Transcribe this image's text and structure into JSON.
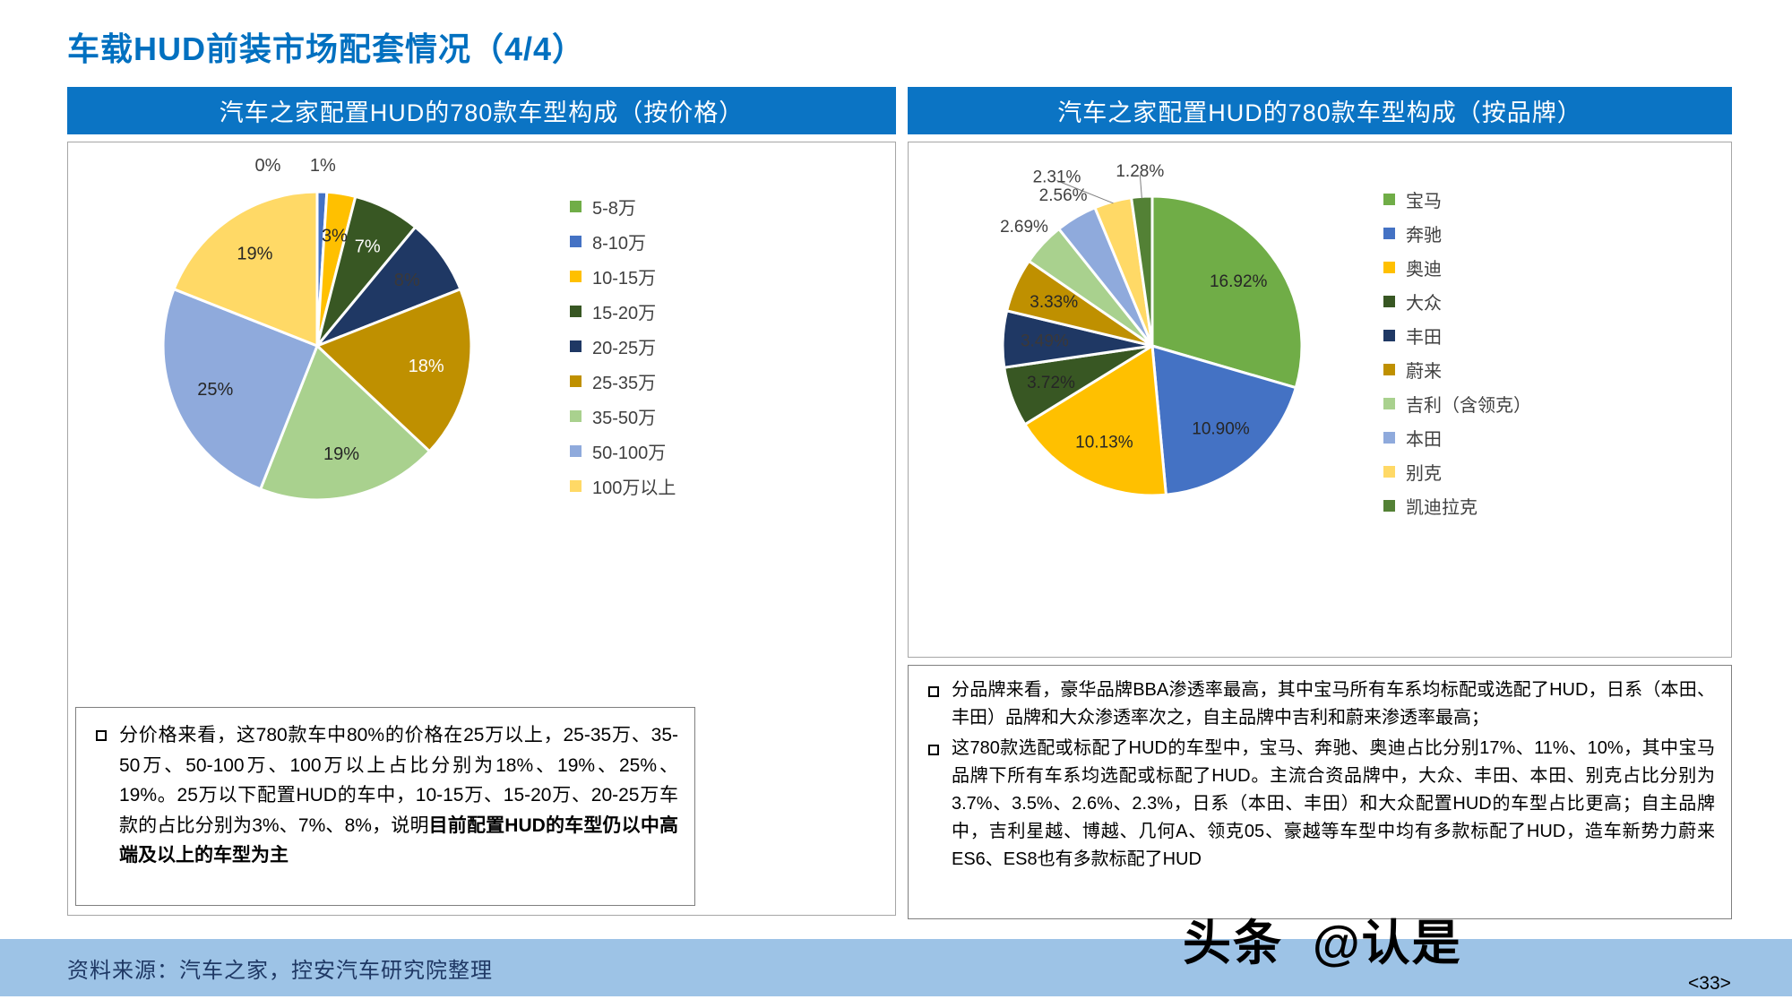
{
  "page": {
    "title": "车载HUD前装市场配套情况（4/4）",
    "footer": {
      "source": "资料来源：汽车之家，控安汽车研究院整理",
      "watermark_1": "头条",
      "watermark_2": "@认是",
      "page_number": "<33>"
    }
  },
  "colors": {
    "accent_blue": "#0070C0",
    "header_bg": "#0B74C4",
    "footer_bg": "#9DC3E6",
    "footer_text": "#1F3864"
  },
  "panels": [
    {
      "header": "汽车之家配置HUD的780款车型构成（按价格）",
      "notes": [
        {
          "parts": [
            {
              "text": "分价格来看，这780款车中80%的价格在25万以上，25-35万、35-50万、50-100万、100万以上占比分别为18%、19%、25%、19%。25万以下配置HUD的车中，10-15万、15-20万、20-25万车款的占比分别为3%、7%、8%，说明",
              "bold": false
            },
            {
              "text": "目前配置HUD的车型仍以中高端及以上的车型为主",
              "bold": true
            }
          ]
        }
      ]
    },
    {
      "header": "汽车之家配置HUD的780款车型构成（按品牌）",
      "notes": [
        {
          "parts": [
            {
              "text": "分品牌来看，豪华品牌BBA渗透率最高，其中宝马所有车系均标配或选配了HUD，日系（本田、丰田）品牌和大众渗透率次之，自主品牌中吉利和蔚来渗透率最高；",
              "bold": false
            }
          ]
        },
        {
          "parts": [
            {
              "text": "这780款选配或标配了HUD的车型中，宝马、奔驰、奥迪占比分别17%、11%、10%，其中宝马品牌下所有车系均选配或标配了HUD。主流合资品牌中，大众、丰田、本田、别克占比分别为3.7%、3.5%、2.6%、2.3%，日系（本田、丰田）和大众配置HUD的车型占比更高；自主品牌中，吉利星越、博越、几何A、领克05、豪越等车型中均有多款标配了HUD，造车新势力蔚来ES6、ES8也有多款标配了HUD",
              "bold": false
            }
          ]
        }
      ]
    }
  ],
  "chart_data": [
    {
      "type": "pie",
      "title": "汽车之家配置HUD的780款车型构成（按价格）",
      "categories": [
        "5-8万",
        "8-10万",
        "10-15万",
        "15-20万",
        "20-25万",
        "25-35万",
        "35-50万",
        "50-100万",
        "100万以上"
      ],
      "values": [
        0,
        1,
        3,
        7,
        8,
        18,
        19,
        25,
        19
      ],
      "labels": [
        "0%",
        "1%",
        "3%",
        "7%",
        "8%",
        "18%",
        "19%",
        "25%",
        "19%"
      ],
      "colors": [
        "#70AD47",
        "#4472C4",
        "#FFC000",
        "#385723",
        "#1F3864",
        "#BF9000",
        "#A9D18E",
        "#8FAADC",
        "#FFD966"
      ],
      "label_colors": [
        "#404040",
        "#404040",
        "#262626",
        "#FFFFFF",
        "#3B3838",
        "#FFFFFF",
        "#262626",
        "#262626",
        "#262626"
      ],
      "label_outside": [
        true,
        true,
        false,
        false,
        false,
        false,
        false,
        false,
        false
      ],
      "leader_lines": [
        false,
        false,
        false,
        false,
        false,
        false,
        false,
        false,
        false
      ],
      "legend_position": "right",
      "start_angle_deg": -90
    },
    {
      "type": "pie",
      "title": "汽车之家配置HUD的780款车型构成（按品牌）",
      "categories": [
        "宝马",
        "奔驰",
        "奥迪",
        "大众",
        "丰田",
        "蔚来",
        "吉利（含领克）",
        "本田",
        "别克",
        "凯迪拉克"
      ],
      "values": [
        16.92,
        10.9,
        10.13,
        3.72,
        3.49,
        3.33,
        2.69,
        2.56,
        2.31,
        1.28
      ],
      "labels": [
        "16.92%",
        "10.90%",
        "10.13%",
        "3.72%",
        "3.49%",
        "3.33%",
        "2.69%",
        "2.56%",
        "2.31%",
        "1.28%"
      ],
      "colors": [
        "#70AD47",
        "#4472C4",
        "#FFC000",
        "#385723",
        "#1F3864",
        "#BF9000",
        "#A9D18E",
        "#8FAADC",
        "#FFD966",
        "#538135"
      ],
      "label_colors": [
        "#262626",
        "#262626",
        "#262626",
        "#262626",
        "#3B3838",
        "#262626",
        "#404040",
        "#404040",
        "#404040",
        "#404040"
      ],
      "label_outside": [
        false,
        false,
        false,
        false,
        false,
        false,
        true,
        true,
        true,
        true
      ],
      "leader_lines": [
        false,
        false,
        false,
        false,
        false,
        false,
        false,
        false,
        true,
        true
      ],
      "legend_position": "right",
      "start_angle_deg": -90
    }
  ]
}
